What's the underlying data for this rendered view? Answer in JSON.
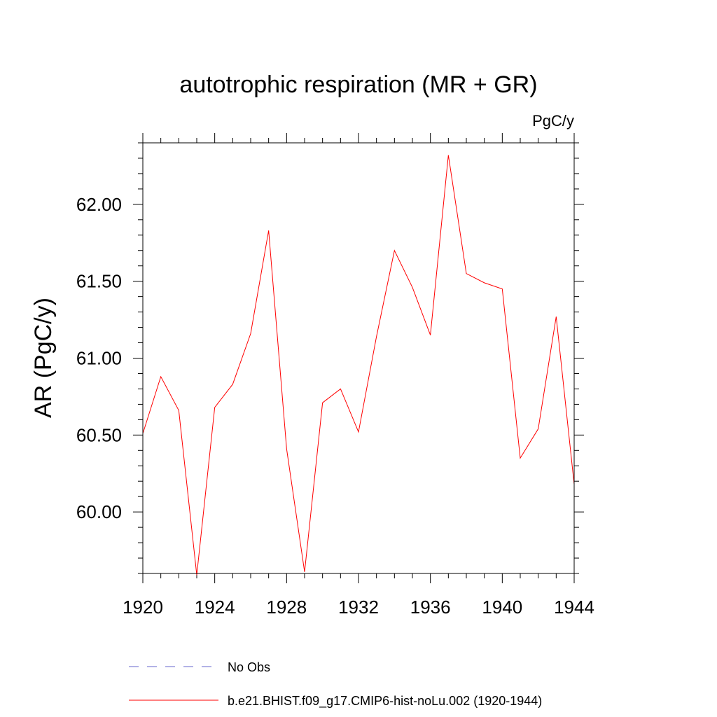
{
  "chart_data": {
    "type": "line",
    "title": "autotrophic respiration (MR + GR)",
    "units_label": "PgC/y",
    "ylabel": "AR  (PgC/y)",
    "xlabel": "",
    "xlim": [
      1920,
      1944
    ],
    "ylim": [
      59.6,
      62.4
    ],
    "xticks": [
      1920,
      1924,
      1928,
      1932,
      1936,
      1940,
      1944
    ],
    "xtick_labels": [
      "1920",
      "1924",
      "1928",
      "1932",
      "1936",
      "1940",
      "1944"
    ],
    "yticks": [
      60.0,
      60.5,
      61.0,
      61.5,
      62.0
    ],
    "ytick_labels": [
      "60.00",
      "60.50",
      "61.00",
      "61.50",
      "62.00"
    ],
    "x_minor_step": 1,
    "y_minor_step": 0.1,
    "grid": false,
    "series": [
      {
        "name": "b.e21.BHIST.f09_g17.CMIP6-hist-noLu.002 (1920-1944)",
        "color": "#ff0000",
        "style": "solid",
        "x": [
          1920,
          1921,
          1922,
          1923,
          1924,
          1925,
          1926,
          1927,
          1928,
          1929,
          1930,
          1931,
          1932,
          1933,
          1934,
          1935,
          1936,
          1937,
          1938,
          1939,
          1940,
          1941,
          1942,
          1943,
          1944
        ],
        "values": [
          60.51,
          60.88,
          60.66,
          59.59,
          60.68,
          60.83,
          61.16,
          61.83,
          60.41,
          59.61,
          60.71,
          60.8,
          60.52,
          61.14,
          61.7,
          61.46,
          61.15,
          62.32,
          61.55,
          61.49,
          61.45,
          60.35,
          60.54,
          61.27,
          60.18
        ]
      }
    ],
    "legend": {
      "placement": "bottom",
      "entries": [
        {
          "label": "No Obs",
          "color": "#6666cc",
          "style": "dashed"
        },
        {
          "label": "b.e21.BHIST.f09_g17.CMIP6-hist-noLu.002 (1920-1944)",
          "color": "#ff0000",
          "style": "solid"
        }
      ]
    }
  }
}
